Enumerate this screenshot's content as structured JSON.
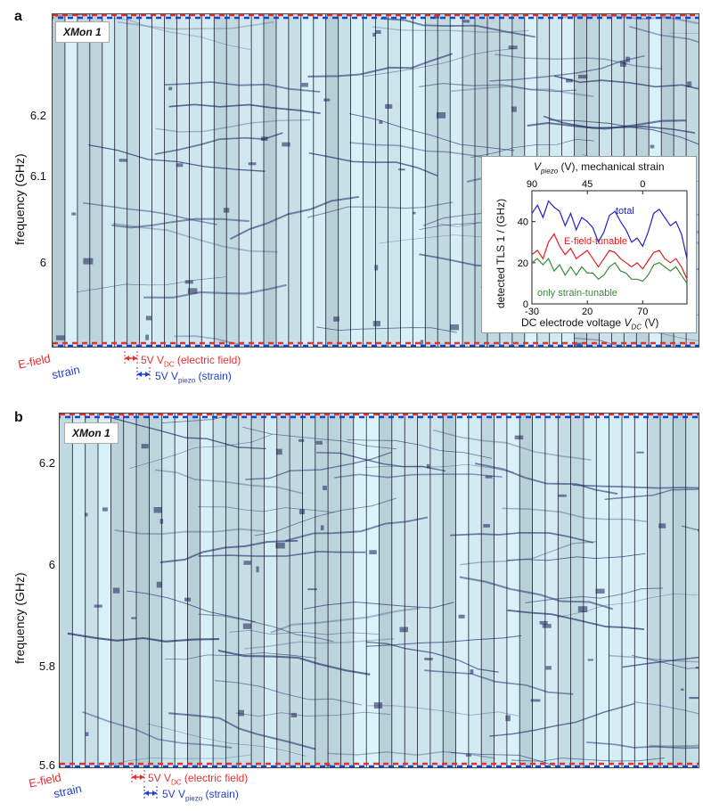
{
  "colors": {
    "efield": "#e53030",
    "strain": "#2040d0",
    "total": "#2020c8",
    "efield_curve": "#e02020",
    "strain_curve": "#3a8a3a"
  },
  "panel_a": {
    "letter": "a",
    "device": "XMon 1",
    "ylabel": "frequency (GHz)",
    "yticks": [
      "6.2",
      "6.1",
      "6"
    ],
    "legend_efield": "E-field",
    "legend_strain": "strain",
    "vdc_note": "5V V",
    "vdc_sub": "DC",
    "vdc_tail": " (electric field)",
    "vpiezo_note": "5V V",
    "vpiezo_sub": "piezo",
    "vpiezo_tail": " (strain)"
  },
  "panel_b": {
    "letter": "b",
    "device": "XMon 1",
    "ylabel": "frequency (GHz)",
    "yticks": [
      "6.2",
      "6",
      "5.8",
      "5.6"
    ],
    "legend_efield": "E-field",
    "legend_strain": "strain",
    "vdc_note": "5V V",
    "vdc_sub": "DC",
    "vdc_tail": " (electric field)",
    "vpiezo_note": "5V V",
    "vpiezo_sub": "piezo",
    "vpiezo_tail": " (strain)"
  },
  "inset": {
    "top_axis_label_v": "V",
    "top_axis_label_sub": "piezo",
    "top_axis_label_tail": " (V), mechanical strain",
    "top_ticks": [
      "90",
      "45",
      "0"
    ],
    "bottom_axis_label": "DC electrode voltage ",
    "bottom_axis_label_v": "V",
    "bottom_axis_label_sub": "DC",
    "bottom_axis_label_tail": " (V)",
    "bottom_ticks": [
      "-30",
      "20",
      "70"
    ],
    "ylabel": "detected TLS  1 / (GHz)",
    "yticks": [
      "40",
      "20",
      "0"
    ],
    "label_total": "total",
    "label_efield": "E-field-tunable",
    "label_strain": "only strain-tunable"
  },
  "chart_data": {
    "type": "line",
    "title": "",
    "xlabel": "DC electrode voltage V_DC (V)",
    "ylabel": "detected TLS 1 / (GHz)",
    "top_xlabel": "V_piezo (V), mechanical strain",
    "xlim": [
      -30,
      110
    ],
    "ylim": [
      0,
      55
    ],
    "x": [
      -30,
      -25,
      -20,
      -15,
      -10,
      -5,
      0,
      5,
      10,
      15,
      20,
      25,
      30,
      35,
      40,
      45,
      50,
      55,
      60,
      65,
      70,
      75,
      80,
      85,
      90,
      95,
      100,
      105,
      110
    ],
    "series": [
      {
        "name": "total",
        "values": [
          44,
          48,
          42,
          50,
          47,
          45,
          38,
          44,
          36,
          42,
          40,
          37,
          30,
          35,
          43,
          45,
          40,
          36,
          30,
          32,
          28,
          35,
          44,
          46,
          42,
          38,
          40,
          34,
          22
        ]
      },
      {
        "name": "E-field-tunable",
        "values": [
          24,
          26,
          22,
          30,
          34,
          28,
          24,
          27,
          22,
          24,
          26,
          22,
          18,
          22,
          26,
          25,
          22,
          20,
          18,
          20,
          17,
          21,
          25,
          26,
          22,
          20,
          22,
          18,
          12
        ]
      },
      {
        "name": "only strain-tunable",
        "values": [
          20,
          22,
          19,
          22,
          16,
          19,
          14,
          18,
          14,
          18,
          15,
          15,
          12,
          14,
          18,
          20,
          16,
          15,
          12,
          12,
          11,
          14,
          19,
          20,
          18,
          16,
          18,
          14,
          10
        ]
      }
    ]
  }
}
